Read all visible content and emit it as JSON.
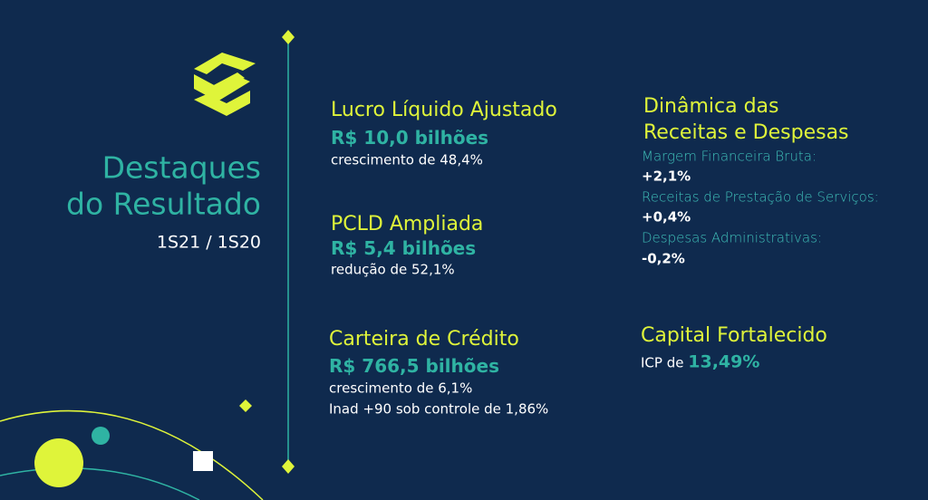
{
  "title": {
    "line1": "Destaques",
    "line2": "do Resultado",
    "period": "1S21 / 1S20"
  },
  "blocks": [
    {
      "heading": "Lucro Líquido Ajustado",
      "amount": "R$ 10,0 bilhões",
      "notes": [
        "crescimento de 48,4%"
      ]
    },
    {
      "heading": "PCLD Ampliada",
      "amount": "R$ 5,4 bilhões",
      "notes": [
        "redução de 52,1%"
      ]
    },
    {
      "heading": "Carteira de Crédito",
      "amount": "R$ 766,5 bilhões",
      "notes": [
        "crescimento de 6,1%",
        "Inad +90 sob controle de 1,86%"
      ]
    }
  ],
  "dynamics": {
    "heading_line1": "Dinâmica das",
    "heading_line2": "Receitas e Despesas",
    "items": [
      {
        "label": "Margem Financeira Bruta:",
        "value": "+2,1%"
      },
      {
        "label": "Receitas de Prestação de Serviços:",
        "value": "+0,4%"
      },
      {
        "label": "Despesas Administrativas:",
        "value": "-0,2%"
      }
    ]
  },
  "capital": {
    "heading": "Capital Fortalecido",
    "prefix": "ICP de",
    "value": "13,49%"
  }
}
